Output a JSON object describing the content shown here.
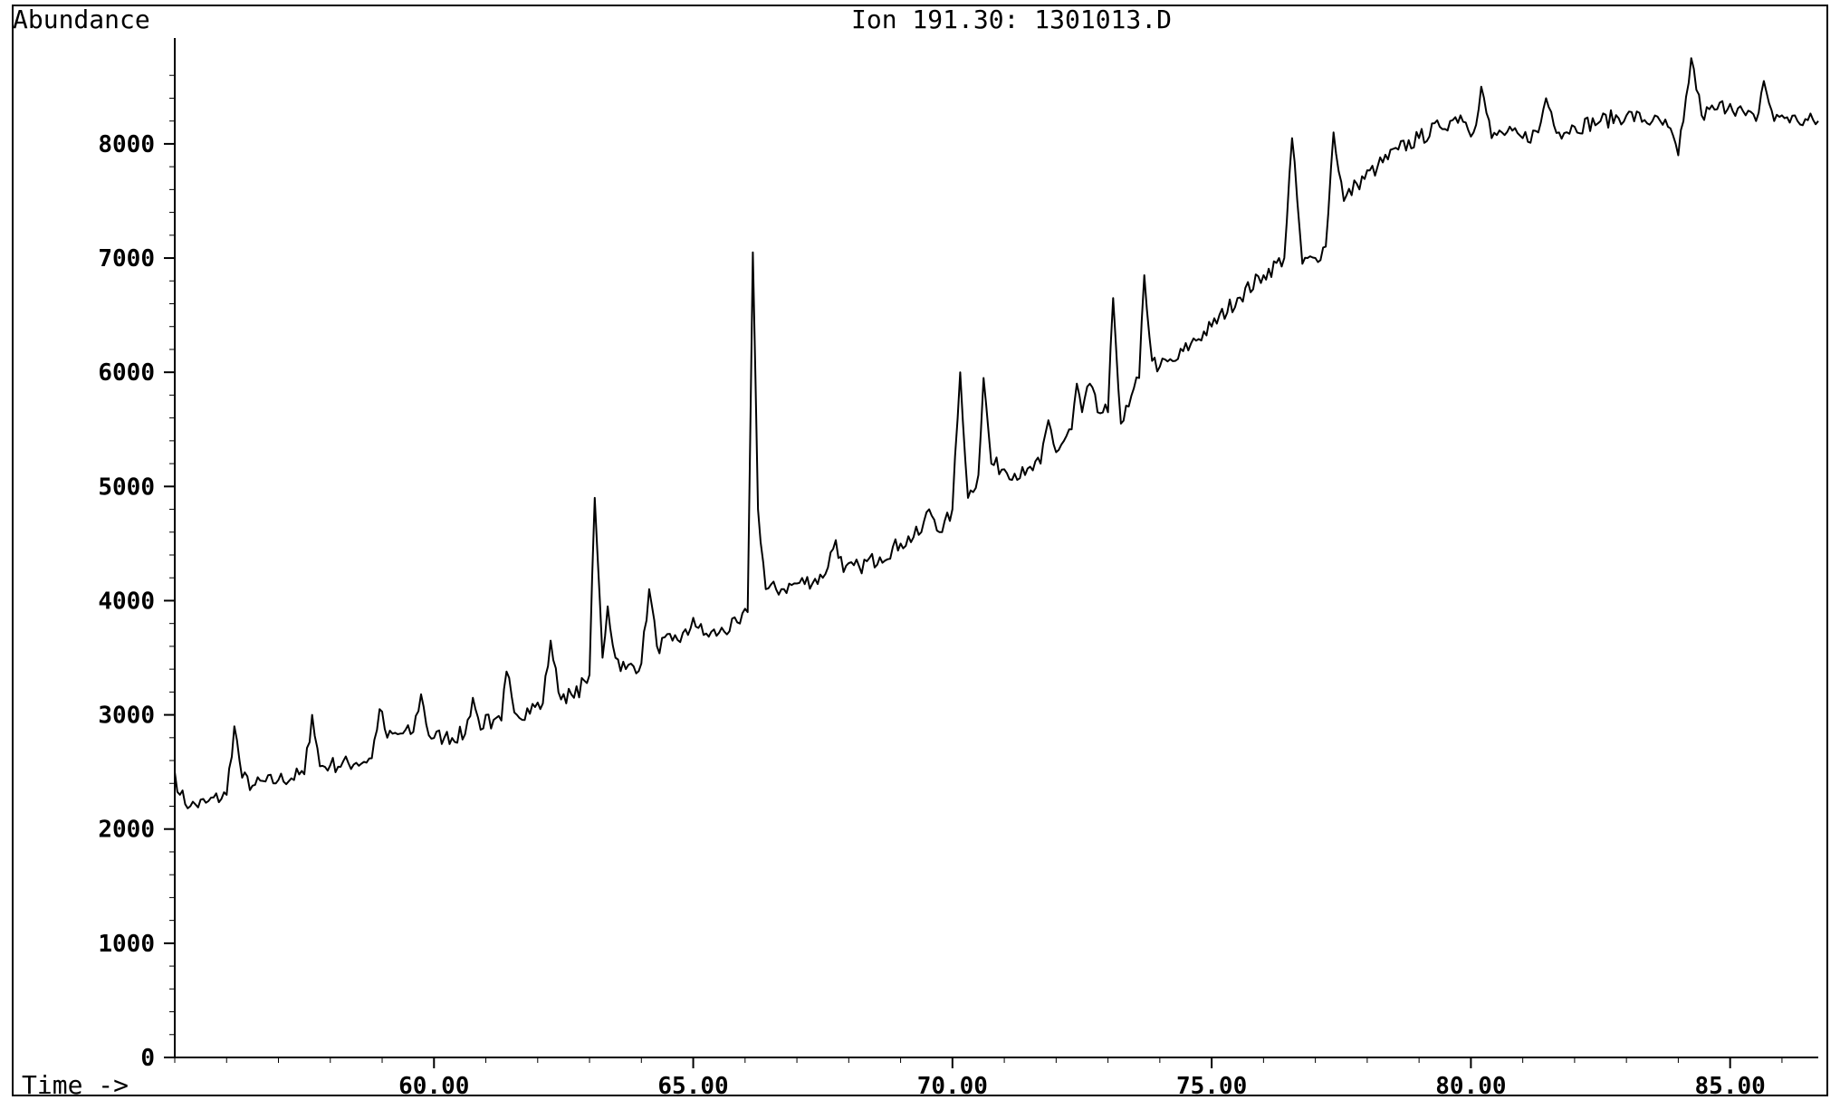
{
  "chart_data": {
    "type": "line",
    "title": "Ion 191.30: 1301013.D",
    "ylabel": "Abundance",
    "xlabel": "Time ->",
    "xlim": [
      55.0,
      86.7
    ],
    "ylim": [
      0,
      8800
    ],
    "x_ticks": [
      60,
      65,
      70,
      75,
      80,
      85
    ],
    "x_tick_labels": [
      "60.00",
      "65.00",
      "70.00",
      "75.00",
      "80.00",
      "85.00"
    ],
    "y_ticks": [
      0,
      1000,
      2000,
      3000,
      4000,
      5000,
      6000,
      7000,
      8000
    ],
    "y_tick_labels": [
      "0",
      "1000",
      "2000",
      "3000",
      "4000",
      "5000",
      "6000",
      "7000",
      "8000"
    ],
    "grid": false,
    "legend": "none",
    "line_color": "#000000",
    "series": [
      {
        "x": [
          55.0,
          55.1,
          55.3,
          55.6,
          56.0,
          56.15,
          56.3,
          56.5,
          57.0,
          57.5,
          57.65,
          57.8,
          58.0,
          58.5,
          58.8,
          58.95,
          59.1,
          59.3,
          59.6,
          59.75,
          59.9,
          60.2,
          60.6,
          60.75,
          60.9,
          61.0,
          61.1,
          61.3,
          61.4,
          61.6,
          62.1,
          62.25,
          62.4,
          62.7,
          62.9,
          63.0,
          63.1,
          63.25,
          63.35,
          63.5,
          63.7,
          64.0,
          64.15,
          64.3,
          64.6,
          64.9,
          65.0,
          65.2,
          65.5,
          65.9,
          66.05,
          66.15,
          66.25,
          66.4,
          66.7,
          67.0,
          67.5,
          67.75,
          67.9,
          68.2,
          68.6,
          69.0,
          69.4,
          69.55,
          69.8,
          70.0,
          70.15,
          70.3,
          70.5,
          70.6,
          70.75,
          71.0,
          71.4,
          71.7,
          71.85,
          72.0,
          72.3,
          72.4,
          72.5,
          72.65,
          72.8,
          73.0,
          73.1,
          73.25,
          73.4,
          73.6,
          73.7,
          73.85,
          74.0,
          74.3,
          74.6,
          75.0,
          75.5,
          76.0,
          76.4,
          76.55,
          76.75,
          77.0,
          77.2,
          77.35,
          77.55,
          77.8,
          78.2,
          78.6,
          79.0,
          79.4,
          79.6,
          79.8,
          80.05,
          80.2,
          80.4,
          80.6,
          81.0,
          81.3,
          81.45,
          81.7,
          82.0,
          82.5,
          83.0,
          83.5,
          83.8,
          84.0,
          84.1,
          84.25,
          84.45,
          84.7,
          85.0,
          85.3,
          85.5,
          85.65,
          85.85,
          86.0,
          86.3,
          86.7
        ],
        "y": [
          2500,
          2300,
          2200,
          2230,
          2300,
          2900,
          2450,
          2380,
          2430,
          2480,
          3000,
          2550,
          2560,
          2580,
          2620,
          3050,
          2800,
          2830,
          2850,
          3180,
          2820,
          2800,
          2830,
          3150,
          2870,
          3000,
          2880,
          2950,
          3380,
          3000,
          3100,
          3650,
          3200,
          3150,
          3300,
          3350,
          4900,
          3500,
          3950,
          3500,
          3400,
          3450,
          4100,
          3600,
          3650,
          3700,
          3850,
          3700,
          3720,
          3800,
          3900,
          7050,
          4800,
          4100,
          4100,
          4150,
          4200,
          4530,
          4250,
          4300,
          4380,
          4500,
          4600,
          4800,
          4600,
          4800,
          6000,
          4900,
          5100,
          5950,
          5200,
          5150,
          5100,
          5200,
          5580,
          5300,
          5500,
          5900,
          5650,
          5900,
          5650,
          5650,
          6650,
          5550,
          5700,
          5950,
          6850,
          6100,
          6050,
          6100,
          6250,
          6400,
          6650,
          6850,
          7000,
          8050,
          6950,
          7000,
          7100,
          8100,
          7500,
          7650,
          7800,
          7950,
          8050,
          8150,
          8200,
          8250,
          8100,
          8500,
          8050,
          8100,
          8050,
          8100,
          8400,
          8100,
          8150,
          8200,
          8250,
          8200,
          8150,
          7900,
          8200,
          8750,
          8250,
          8300,
          8350,
          8250,
          8200,
          8550,
          8200,
          8250,
          8200,
          8200
        ]
      }
    ]
  }
}
